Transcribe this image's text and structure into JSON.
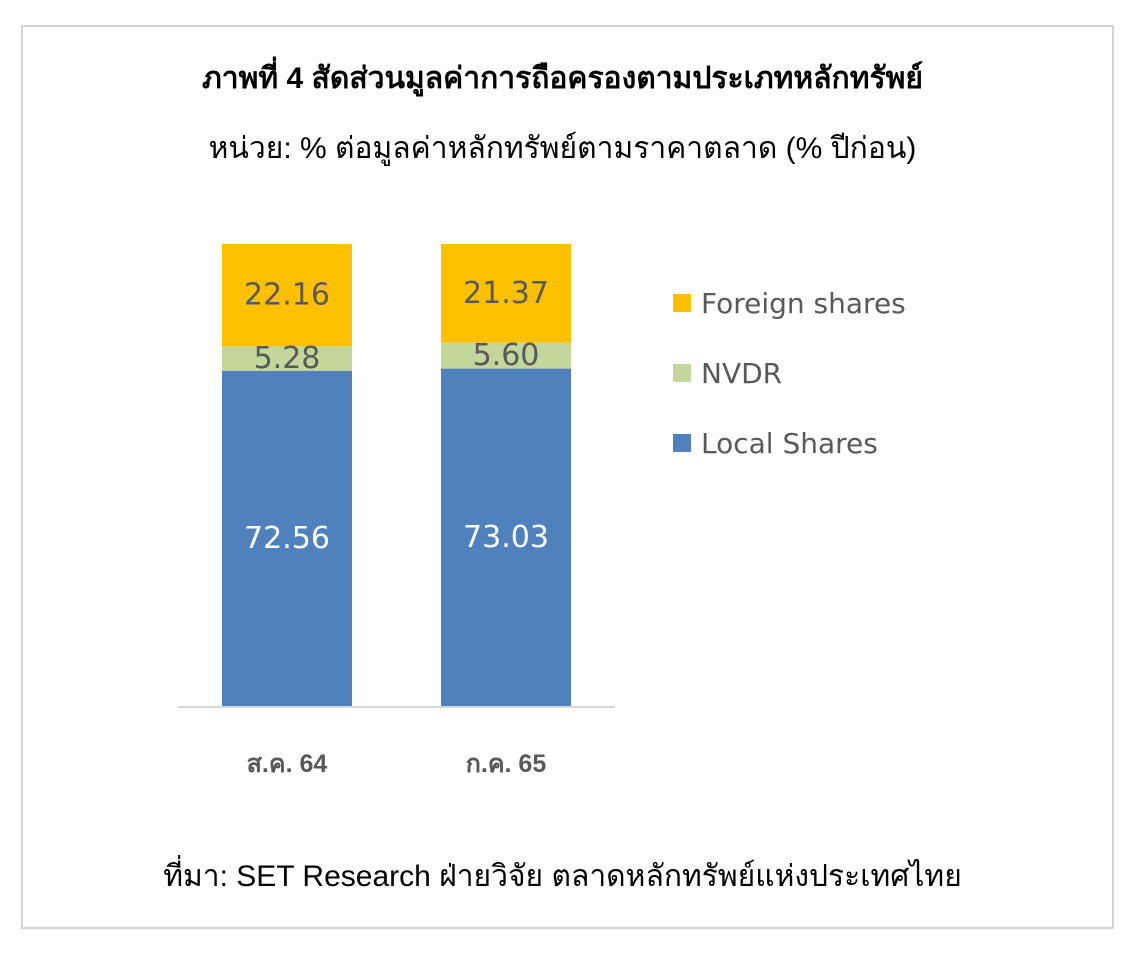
{
  "title": "ภาพที่ 4 สัดส่วนมูลค่าการถือครองตามประเภทหลักทรัพย์",
  "subtitle": "หน่วย: % ต่อมูลค่าหลักทรัพย์ตามราคาตลาด (% ปีก่อน)",
  "source": "ที่มา: SET Research ฝ่ายวิจัย ตลาดหลักทรัพย์แห่งประเทศไทย",
  "colors": {
    "local": "#4f81bd",
    "nvdr": "#c3d69b",
    "foreign": "#ffc000",
    "axis": "#d9d9d9",
    "label_dark": "#595959",
    "label_light": "#ffffff"
  },
  "legend": [
    {
      "label": "Foreign shares",
      "color": "#ffc000"
    },
    {
      "label": "NVDR",
      "color": "#c3d69b"
    },
    {
      "label": "Local Shares",
      "color": "#4f81bd"
    }
  ],
  "chart_data": {
    "type": "bar",
    "stacked": true,
    "categories": [
      "ส.ค. 64",
      "ก.ค. 65"
    ],
    "series": [
      {
        "name": "Local Shares",
        "values": [
          72.56,
          73.03
        ]
      },
      {
        "name": "NVDR",
        "values": [
          5.28,
          5.6
        ]
      },
      {
        "name": "Foreign shares",
        "values": [
          22.16,
          21.37
        ]
      }
    ],
    "data_labels": [
      [
        "72.56",
        "73.03"
      ],
      [
        "5.28",
        "5.60"
      ],
      [
        "22.16",
        "21.37"
      ]
    ],
    "ylim": [
      0,
      100
    ],
    "grid": false,
    "legend_position": "right"
  }
}
